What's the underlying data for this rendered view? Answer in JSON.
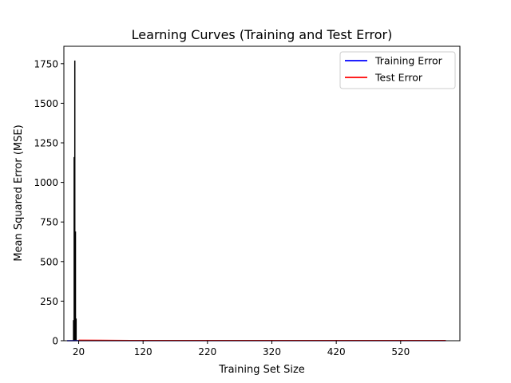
{
  "chart_data": {
    "type": "line",
    "title": "Learning Curves (Training and Test Error)",
    "xlabel": "Training Set Size",
    "ylabel": "Mean Squared Error (MSE)",
    "xlim": [
      -3,
      612
    ],
    "ylim": [
      0,
      1860
    ],
    "xticks": [
      20,
      120,
      220,
      320,
      420,
      520
    ],
    "yticks": [
      0,
      250,
      500,
      750,
      1000,
      1250,
      1500,
      1750
    ],
    "legend": {
      "position": "upper right"
    },
    "series": [
      {
        "name": "Training Error",
        "color": "#0000ff",
        "x": [
          2,
          20,
          100,
          200,
          300,
          400,
          500,
          590
        ],
        "y": [
          0,
          0.5,
          0.6,
          0.6,
          0.6,
          0.6,
          0.6,
          0.6
        ]
      },
      {
        "name": "Test Error",
        "color": "#ff0000",
        "x": [
          20,
          100,
          200,
          300,
          400,
          500,
          590
        ],
        "y": [
          3,
          1.5,
          1.2,
          1.1,
          1.0,
          1.0,
          1.0
        ]
      }
    ],
    "spikes": {
      "color": "#000000",
      "x": [
        12,
        13,
        14,
        15,
        16
      ],
      "high": [
        130,
        1160,
        1770,
        690,
        140
      ],
      "low": [
        0,
        0,
        0,
        0,
        0
      ]
    }
  }
}
